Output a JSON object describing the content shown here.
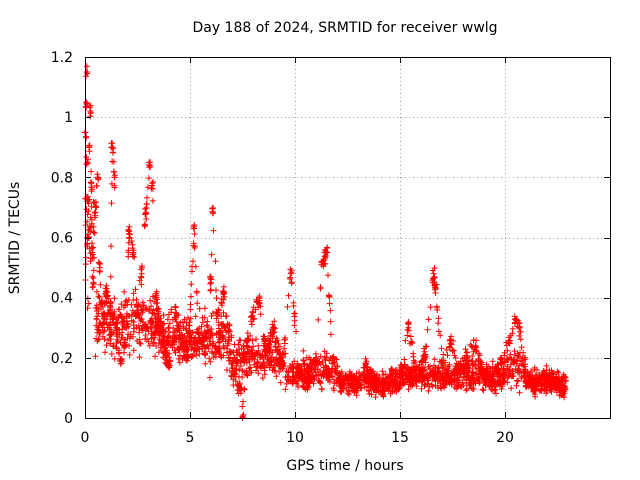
{
  "chart_data": {
    "type": "scatter",
    "title": "Day 188 of 2024, SRMTID for receiver wwlg",
    "xlabel": "GPS time / hours",
    "ylabel": "SRMTID / TECUs",
    "xlim": [
      0,
      25
    ],
    "ylim": [
      0,
      1.2
    ],
    "xticks": [
      0,
      5,
      10,
      15,
      20
    ],
    "xtick_labels": [
      "0",
      "5",
      "10",
      "15",
      "20"
    ],
    "yticks": [
      0,
      0.2,
      0.4,
      0.6,
      0.8,
      1,
      1.2
    ],
    "ytick_labels": [
      "0",
      "0.2",
      "0.4",
      "0.6",
      "0.8",
      "1",
      "1.2"
    ],
    "grid": true,
    "marker": "+",
    "color": "#ff0000",
    "point_count_estimate": 2700,
    "series": [
      {
        "name": "SRMTID",
        "sampled_points": [
          [
            0.02,
            0.95
          ],
          [
            0.05,
            1.05
          ],
          [
            0.08,
            1.15
          ],
          [
            0.1,
            0.85
          ],
          [
            0.12,
            0.72
          ],
          [
            0.15,
            0.6
          ],
          [
            0.2,
            0.9
          ],
          [
            0.25,
            1.02
          ],
          [
            0.3,
            0.78
          ],
          [
            0.35,
            0.55
          ],
          [
            0.4,
            0.45
          ],
          [
            0.5,
            0.7
          ],
          [
            0.6,
            0.8
          ],
          [
            0.7,
            0.5
          ],
          [
            0.8,
            0.38
          ],
          [
            0.9,
            0.33
          ],
          [
            1.0,
            0.42
          ],
          [
            1.2,
            0.36
          ],
          [
            1.3,
            0.9
          ],
          [
            1.4,
            0.8
          ],
          [
            1.5,
            0.3
          ],
          [
            1.7,
            0.18
          ],
          [
            1.9,
            0.25
          ],
          [
            2.1,
            0.62
          ],
          [
            2.3,
            0.55
          ],
          [
            2.5,
            0.35
          ],
          [
            2.7,
            0.48
          ],
          [
            2.9,
            0.68
          ],
          [
            3.1,
            0.85
          ],
          [
            3.2,
            0.78
          ],
          [
            3.4,
            0.4
          ],
          [
            3.6,
            0.3
          ],
          [
            3.8,
            0.22
          ],
          [
            4.0,
            0.18
          ],
          [
            4.3,
            0.35
          ],
          [
            4.6,
            0.25
          ],
          [
            4.9,
            0.2
          ],
          [
            5.2,
            0.63
          ],
          [
            5.4,
            0.28
          ],
          [
            5.7,
            0.22
          ],
          [
            6.0,
            0.45
          ],
          [
            6.1,
            0.68
          ],
          [
            6.3,
            0.35
          ],
          [
            6.6,
            0.42
          ],
          [
            7.0,
            0.15
          ],
          [
            7.4,
            0.1
          ],
          [
            7.5,
            0.0
          ],
          [
            7.7,
            0.25
          ],
          [
            8.0,
            0.35
          ],
          [
            8.3,
            0.4
          ],
          [
            8.6,
            0.22
          ],
          [
            9.0,
            0.3
          ],
          [
            9.4,
            0.18
          ],
          [
            9.8,
            0.48
          ],
          [
            10.2,
            0.15
          ],
          [
            10.6,
            0.12
          ],
          [
            11.0,
            0.2
          ],
          [
            11.3,
            0.52
          ],
          [
            11.5,
            0.55
          ],
          [
            11.8,
            0.2
          ],
          [
            12.2,
            0.12
          ],
          [
            12.6,
            0.14
          ],
          [
            13.0,
            0.1
          ],
          [
            13.4,
            0.18
          ],
          [
            13.8,
            0.12
          ],
          [
            14.2,
            0.09
          ],
          [
            14.6,
            0.15
          ],
          [
            15.0,
            0.12
          ],
          [
            15.4,
            0.3
          ],
          [
            15.8,
            0.14
          ],
          [
            16.2,
            0.2
          ],
          [
            16.6,
            0.48
          ],
          [
            16.7,
            0.43
          ],
          [
            17.0,
            0.18
          ],
          [
            17.4,
            0.26
          ],
          [
            17.8,
            0.16
          ],
          [
            18.2,
            0.2
          ],
          [
            18.6,
            0.24
          ],
          [
            19.0,
            0.15
          ],
          [
            19.4,
            0.12
          ],
          [
            19.8,
            0.2
          ],
          [
            20.2,
            0.25
          ],
          [
            20.5,
            0.33
          ],
          [
            20.7,
            0.3
          ],
          [
            21.0,
            0.12
          ],
          [
            21.4,
            0.1
          ],
          [
            21.8,
            0.15
          ],
          [
            22.2,
            0.12
          ],
          [
            22.6,
            0.11
          ],
          [
            22.8,
            0.09
          ]
        ]
      }
    ]
  }
}
